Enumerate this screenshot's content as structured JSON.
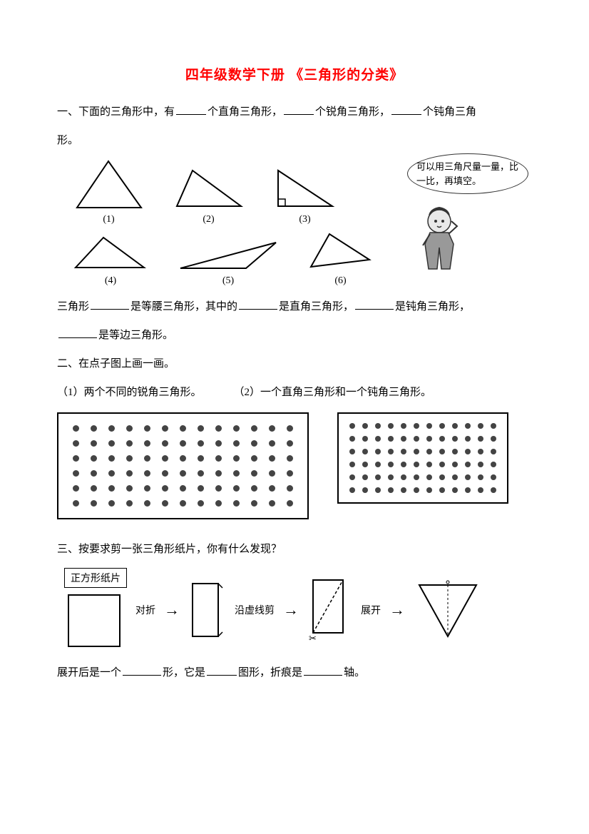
{
  "title": "四年级数学下册  《三角形的分类》",
  "q1": {
    "line1_pre": "一、下面的三角形中，有",
    "line1_mid1": "个直角三角形，",
    "line1_mid2": "个锐角三角形，",
    "line1_end": "个钝角三角",
    "line2": "形。",
    "triangles": [
      {
        "label": "(1)"
      },
      {
        "label": "(2)"
      },
      {
        "label": "(3)"
      },
      {
        "label": "(4)"
      },
      {
        "label": "(5)"
      },
      {
        "label": "(6)"
      }
    ],
    "speech": "可以用三角尺量一量，比一比，再填空。",
    "line3_pre": "三角形",
    "line3_mid1": "是等腰三角形，其中的",
    "line3_mid2": "是直角三角形，",
    "line3_end": "是钝角三角形，",
    "line4_end": "是等边三角形。"
  },
  "q2": {
    "heading": "二、在点子图上画一画。",
    "left": "（1）两个不同的锐角三角形。",
    "right": "（2）一个直角三角形和一个钝角三角形。",
    "grid_left": {
      "rows": 6,
      "cols": 13
    },
    "grid_right": {
      "rows": 6,
      "cols": 12
    }
  },
  "q3": {
    "heading": "三、按要求剪一张三角形纸片，你有什么发现？",
    "box_label": "正方形纸片",
    "step1": "对折",
    "step2": "沿虚线剪",
    "step3": "展开",
    "fill_pre": "展开后是一个",
    "fill_mid1": "形，它是",
    "fill_mid2": "图形，折痕是",
    "fill_end": "轴。"
  },
  "colors": {
    "accent": "#ff0000",
    "ink": "#000000",
    "dot": "#444444",
    "bg": "#ffffff"
  }
}
